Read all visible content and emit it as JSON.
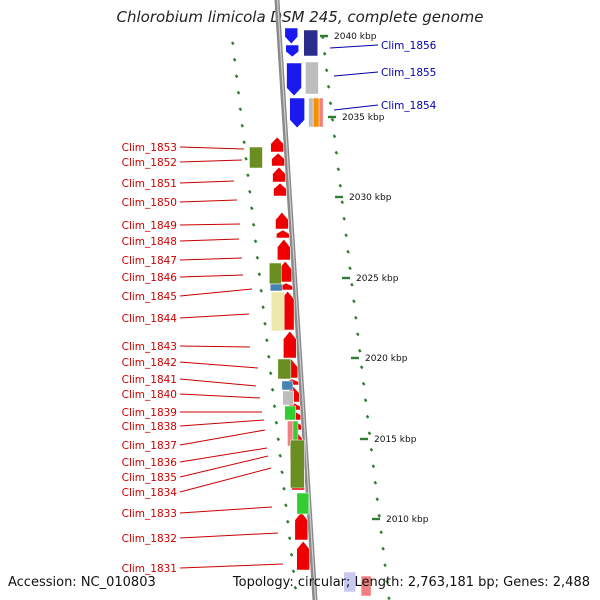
{
  "title": "Chlorobium limicola DSM 245, complete genome",
  "footer": {
    "accession": "Accession: NC_010803",
    "summary": "Topology: circular; Length: 2,763,181 bp; Genes: 2,488"
  },
  "colors": {
    "backbone": "#8a8a8a",
    "tick": "#2e7d32",
    "label_left": "#cc0000",
    "label_right": "#0000aa",
    "gene_red": "#ee0000",
    "gene_blue": "#1a1aee",
    "gene_navy": "#2c2c8c",
    "gene_olive": "#6b8e23",
    "gene_steel": "#4682b4",
    "gene_khaki": "#eee8aa",
    "gene_lime": "#32cd32",
    "gene_grey": "#bdbdbd",
    "gene_salmon": "#f08080"
  },
  "scale_labels": [
    "2040 kbp",
    "2035 kbp",
    "2030 kbp",
    "2025 kbp",
    "2020 kbp",
    "2015 kbp",
    "2010 kbp"
  ],
  "genes_left": [
    "Clim_1853",
    "Clim_1852",
    "Clim_1851",
    "Clim_1850",
    "Clim_1849",
    "Clim_1848",
    "Clim_1847",
    "Clim_1846",
    "Clim_1845",
    "Clim_1844",
    "Clim_1843",
    "Clim_1842",
    "Clim_1841",
    "Clim_1840",
    "Clim_1839",
    "Clim_1838",
    "Clim_1837",
    "Clim_1836",
    "Clim_1835",
    "Clim_1834",
    "Clim_1833",
    "Clim_1832",
    "Clim_1831"
  ],
  "genes_right": [
    "Clim_1856",
    "Clim_1855",
    "Clim_1854"
  ]
}
